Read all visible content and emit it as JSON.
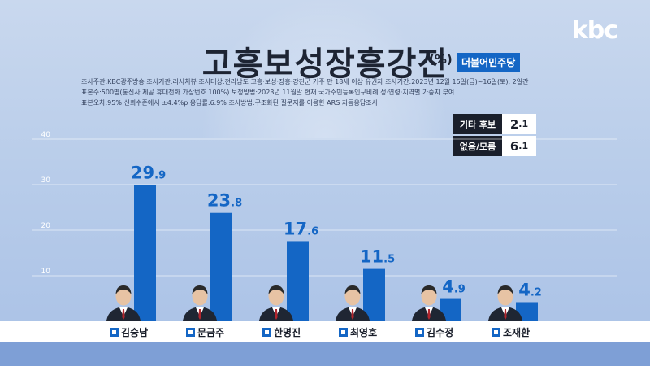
{
  "brand": {
    "logo_text": "kbc"
  },
  "header": {
    "title": "고흥보성장흥강진",
    "unit": "(%)",
    "party": "더불어민주당",
    "meta_lines": [
      "조사주관:KBC광주방송   조사기관:리서치뷰   조사대상:전라남도 고흥·보성·장흥·강진군 거주 만 18세 이상 유권자   조사기간:2023년 12월 15일(금)~16일(토), 2일간",
      "표본수:500명(통신사 제공 휴대전화 가상번호 100%)   보정방법:2023년 11월말 현재 국가주민등록인구비례 성·연령·지역별 가중치 부여",
      "표본오차:95% 신뢰수준에서 ±4.4%p   응답률:6.9%   조사방법:구조화된 질문지를 이용한 ARS 자동응답조사"
    ]
  },
  "others": [
    {
      "label": "기타 후보",
      "int": "2",
      "dec": ".1"
    },
    {
      "label": "없음/모름",
      "int": "6",
      "dec": ".1"
    }
  ],
  "chart_data": {
    "type": "bar",
    "categories": [
      "김승남",
      "문금주",
      "한명진",
      "최영호",
      "김수정",
      "조재환"
    ],
    "values": [
      29.9,
      23.8,
      17.6,
      11.5,
      4.9,
      4.2
    ],
    "value_labels": [
      {
        "int": "29",
        "dec": ".9"
      },
      {
        "int": "23",
        "dec": ".8"
      },
      {
        "int": "17",
        "dec": ".6"
      },
      {
        "int": "11",
        "dec": ".5"
      },
      {
        "int": "4",
        "dec": ".9"
      },
      {
        "int": "4",
        "dec": ".2"
      }
    ],
    "title": "고흥보성장흥강진",
    "ylim": [
      0,
      40
    ],
    "yticks": [
      10,
      20,
      30,
      40
    ],
    "grid": true,
    "bar_color": "#1466c5"
  }
}
